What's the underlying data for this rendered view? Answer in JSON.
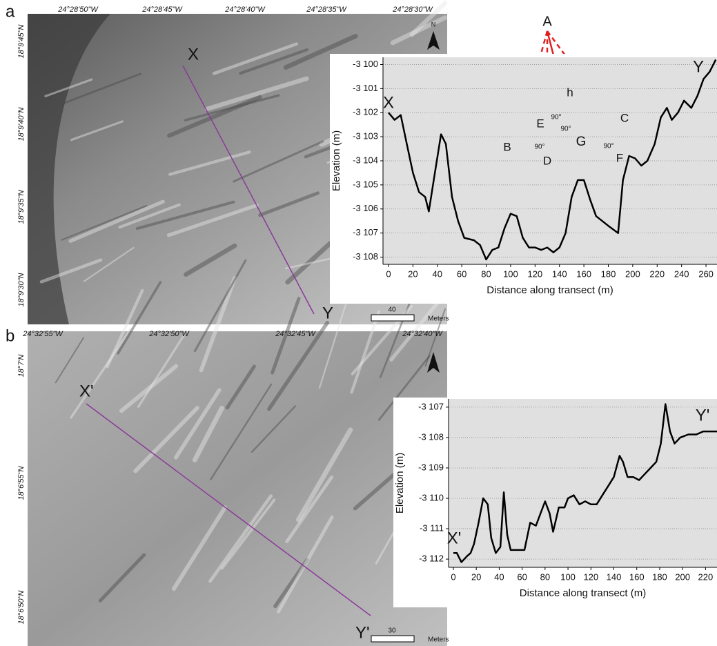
{
  "figure": {
    "panels": [
      {
        "label": "a",
        "lon_labels": [
          "24°28'50\"W",
          "24°28'45\"W",
          "24°28'40\"W",
          "24°28'35\"W",
          "24°28'30\"W"
        ],
        "lat_labels": [
          "18°9'45\"N",
          "18°9'40\"N",
          "18°9'35\"N",
          "18°9'30\"N"
        ],
        "transect_start": "X",
        "transect_end": "Y",
        "north": "N",
        "scale_value": 40,
        "scale_unit": "Meters"
      },
      {
        "label": "b",
        "lon_labels": [
          "24°32'55\"W",
          "24°32'50\"W",
          "24°32'45\"W",
          "24°32'40\"W"
        ],
        "lat_labels": [
          "18°7'N",
          "18°6'55\"N",
          "18°6'50\"N"
        ],
        "transect_start": "X'",
        "transect_end": "Y'",
        "scale_value": 30,
        "scale_unit": "Meters"
      }
    ]
  },
  "chart_data": [
    {
      "type": "line",
      "x_label": "Distance along transect (m)",
      "y_label": "Elevation (m)",
      "x": [
        0,
        5,
        10,
        15,
        20,
        25,
        30,
        33,
        38,
        43,
        47,
        52,
        57,
        62,
        70,
        75,
        80,
        85,
        90,
        95,
        100,
        105,
        110,
        115,
        120,
        125,
        130,
        135,
        140,
        145,
        150,
        155,
        160,
        165,
        170,
        175,
        180,
        188,
        192,
        197,
        202,
        207,
        212,
        218,
        223,
        228,
        232,
        237,
        242,
        248,
        253,
        258,
        263,
        268
      ],
      "values": [
        -3102.0,
        -3102.3,
        -3102.1,
        -3103.3,
        -3104.5,
        -3105.3,
        -3105.5,
        -3106.1,
        -3104.5,
        -3102.9,
        -3103.3,
        -3105.5,
        -3106.5,
        -3107.2,
        -3107.3,
        -3107.5,
        -3108.1,
        -3107.7,
        -3107.6,
        -3106.8,
        -3106.2,
        -3106.3,
        -3107.2,
        -3107.6,
        -3107.6,
        -3107.7,
        -3107.6,
        -3107.8,
        -3107.6,
        -3107.0,
        -3105.5,
        -3104.8,
        -3104.8,
        -3105.6,
        -3106.3,
        -3106.5,
        -3106.7,
        -3107.0,
        -3104.8,
        -3103.8,
        -3103.9,
        -3104.2,
        -3104.0,
        -3103.3,
        -3102.2,
        -3101.8,
        -3102.3,
        -3102.0,
        -3101.5,
        -3101.8,
        -3101.3,
        -3100.6,
        -3100.3,
        -3099.8
      ],
      "color": "#000000",
      "xlim": [
        -4.5,
        269
      ],
      "ylim": [
        -3108.3,
        -3099.7
      ],
      "xticks": [
        0,
        20,
        40,
        60,
        80,
        100,
        120,
        140,
        160,
        180,
        200,
        220,
        240,
        260
      ],
      "yticks": [
        {
          "value": -3108,
          "label": "-3 108"
        },
        {
          "value": -3107,
          "label": "-3 107"
        },
        {
          "value": -3106,
          "label": "-3 106"
        },
        {
          "value": -3105,
          "label": "-3 105"
        },
        {
          "value": -3104,
          "label": "-3 104"
        },
        {
          "value": -3103,
          "label": "-3 103"
        },
        {
          "value": -3102,
          "label": "-3 102"
        },
        {
          "value": -3101,
          "label": "-3 101"
        },
        {
          "value": -3100,
          "label": "-3 100"
        }
      ],
      "grid": true,
      "annotations": [
        "X",
        "Y",
        "A",
        "B",
        "C",
        "D",
        "E",
        "F",
        "G",
        "h",
        "90°",
        "90°",
        "90°",
        "90°"
      ]
    },
    {
      "type": "line",
      "x_label": "Distance along transect (m)",
      "y_label": "Elevation (m)",
      "x": [
        0,
        3,
        7,
        12,
        15,
        18,
        22,
        26,
        30,
        33,
        37,
        41,
        44,
        47,
        50,
        55,
        62,
        67,
        72,
        77,
        80,
        84,
        87,
        92,
        97,
        100,
        105,
        110,
        115,
        120,
        125,
        130,
        135,
        140,
        145,
        148,
        152,
        157,
        162,
        167,
        172,
        177,
        181,
        185,
        189,
        193,
        198,
        205,
        212,
        218,
        225,
        230
      ],
      "values": [
        -3111.8,
        -3111.8,
        -3112.1,
        -3111.9,
        -3111.8,
        -3111.5,
        -3110.8,
        -3110.0,
        -3110.2,
        -3111.3,
        -3111.8,
        -3111.6,
        -3109.8,
        -3111.2,
        -3111.7,
        -3111.7,
        -3111.7,
        -3110.8,
        -3110.9,
        -3110.4,
        -3110.1,
        -3110.5,
        -3111.1,
        -3110.3,
        -3110.3,
        -3110.0,
        -3109.9,
        -3110.2,
        -3110.1,
        -3110.2,
        -3110.2,
        -3109.9,
        -3109.6,
        -3109.3,
        -3108.6,
        -3108.8,
        -3109.3,
        -3109.3,
        -3109.4,
        -3109.2,
        -3109.0,
        -3108.8,
        -3108.2,
        -3106.9,
        -3107.8,
        -3108.2,
        -3108.0,
        -3107.9,
        -3107.9,
        -3107.8,
        -3107.8,
        -3107.8
      ],
      "color": "#000000",
      "xlim": [
        -4.2,
        230
      ],
      "ylim": [
        -3112.27,
        -3106.73
      ],
      "xticks": [
        0,
        20,
        40,
        60,
        80,
        100,
        120,
        140,
        160,
        180,
        200,
        220
      ],
      "yticks": [
        {
          "value": -3112,
          "label": "-3 112"
        },
        {
          "value": -3111,
          "label": "-3 111"
        },
        {
          "value": -3110,
          "label": "-3 110"
        },
        {
          "value": -3109,
          "label": "-3 109"
        },
        {
          "value": -3108,
          "label": "-3 108"
        },
        {
          "value": -3107,
          "label": "-3 107"
        }
      ],
      "grid": true,
      "annotations": [
        "X'",
        "Y'"
      ]
    }
  ]
}
